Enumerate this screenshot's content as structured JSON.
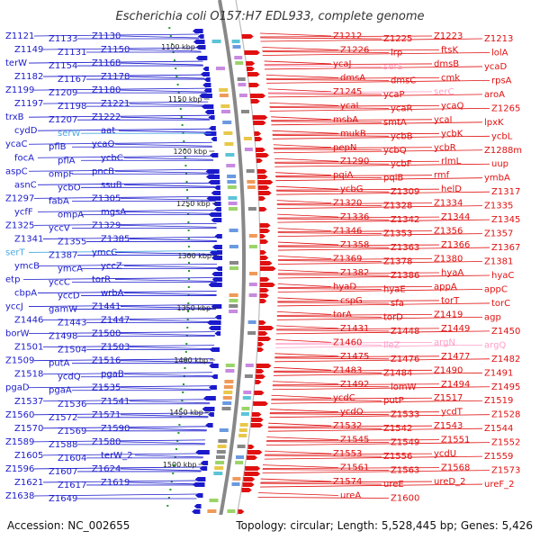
{
  "title": "Escherichia coli O157:H7 EDL933, complete genome",
  "footer": {
    "accession": "Accession: NC_002655",
    "topology": "Topology: circular; Length: 5,528,445 bp; Genes: 5,426"
  },
  "colors": {
    "reverse": "#1a1acc",
    "forward": "#e01010",
    "rna_left": "#4aa8e0",
    "rna_right": "#ff9ec8",
    "backbone": "#888888",
    "gc_dots": "#2a9a2a"
  },
  "scale_ticks": [
    "1100 kbp",
    "1150 kbp",
    "1200 kbp",
    "1250 kbp",
    "1300 kbp",
    "1350 kbp",
    "1400 kbp",
    "1450 kbp",
    "1500 kbp"
  ],
  "left_labels": [
    "Z1121",
    "Z1133",
    "Z1130",
    "Z1149",
    "Z1131",
    "Z1150",
    "terW",
    "Z1154",
    "Z1168",
    "Z1182",
    "Z1167",
    "Z1178",
    "Z1199",
    "Z1209",
    "Z1180",
    "Z1197",
    "Z1198",
    "Z1221",
    "trxB",
    "Z1207",
    "Z1222",
    "cydD",
    "serW",
    "aat",
    "ycaC",
    "pflB",
    "ycaO",
    "focA",
    "pflA",
    "ycbC",
    "aspC",
    "ompF",
    "pncB",
    "asnC",
    "ycbO",
    "ssuB",
    "Z1297",
    "fabA",
    "Z1305",
    "ycfF",
    "ompA",
    "mgsA",
    "Z1325",
    "yccV",
    "Z1329",
    "Z1341",
    "Z1355",
    "Z1385",
    "serT",
    "Z1387",
    "ymcC",
    "ymcB",
    "ymcA",
    "yccZ",
    "etp",
    "yccC",
    "torR",
    "cbpA",
    "yccD",
    "wrbA",
    "yccJ",
    "gamW",
    "Z1441",
    "Z1446",
    "Z1443",
    "Z1447",
    "borW",
    "Z1498",
    "Z1500",
    "Z1501",
    "Z1504",
    "Z1503",
    "Z1509",
    "putA",
    "Z1516",
    "Z1518",
    "ycdQ",
    "pgaB",
    "pgaD",
    "pgaA",
    "Z1535",
    "Z1537",
    "Z1536",
    "Z1541",
    "Z1560",
    "Z1572",
    "Z1571",
    "Z1570",
    "Z1569",
    "Z1590",
    "Z1589",
    "Z1588",
    "Z1580",
    "Z1605",
    "Z1604",
    "terW_2",
    "Z1596",
    "Z1607",
    "Z1624",
    "Z1621",
    "Z1617",
    "Z1619",
    "Z1638",
    "Z1649"
  ],
  "right_labels": [
    "Z1212",
    "Z1225",
    "Z1223",
    "Z1213",
    "Z1226",
    "lrp",
    "ftsK",
    "lolA",
    "ycaJ",
    "serS",
    "dmsB",
    "ycaD",
    "dmsA",
    "dmsC",
    "cmk",
    "rpsA",
    "Z1245",
    "ycaP",
    "serC",
    "aroA",
    "ycaL",
    "ycaR",
    "ycaQ",
    "Z1265",
    "msbA",
    "smtA",
    "ycaI",
    "lpxK",
    "mukB",
    "ycbB",
    "ycbK",
    "ycbL",
    "pepN",
    "ycbQ",
    "ycbR",
    "Z1288m",
    "Z1290",
    "ycbF",
    "rlmL",
    "uup",
    "pqiA",
    "pqiB",
    "rmf",
    "ymbA",
    "ycbG",
    "Z1309",
    "helD",
    "Z1317",
    "Z1320",
    "Z1328",
    "Z1334",
    "Z1335",
    "Z1336",
    "Z1342",
    "Z1344",
    "Z1345",
    "Z1346",
    "Z1353",
    "Z1356",
    "Z1357",
    "Z1358",
    "Z1363",
    "Z1366",
    "Z1367",
    "Z1369",
    "Z1378",
    "Z1380",
    "Z1381",
    "Z1382",
    "Z1386",
    "hyaA",
    "hyaC",
    "hyaD",
    "hyaE",
    "appA",
    "appC",
    "cspG",
    "sfa",
    "torT",
    "torC",
    "torA",
    "torD",
    "Z1419",
    "agp",
    "Z1431",
    "Z1448",
    "Z1449",
    "Z1450",
    "Z1460",
    "ileZ",
    "argN",
    "argQ",
    "Z1475",
    "Z1476",
    "Z1477",
    "Z1482",
    "Z1483",
    "Z1484",
    "Z1490",
    "Z1491",
    "Z1492",
    "lomW",
    "Z1494",
    "Z1495",
    "ycdC",
    "putP",
    "Z1517",
    "Z1519",
    "ycdO",
    "Z1533",
    "ycdT",
    "Z1528",
    "Z1532",
    "Z1542",
    "Z1543",
    "Z1544",
    "Z1545",
    "Z1549",
    "Z1551",
    "Z1552",
    "Z1553",
    "Z1556",
    "ycdU",
    "Z1559",
    "Z1561",
    "Z1563",
    "Z1568",
    "Z1573",
    "Z1574",
    "ureE",
    "ureD_2",
    "ureF_2",
    "ureA",
    "Z1600"
  ]
}
